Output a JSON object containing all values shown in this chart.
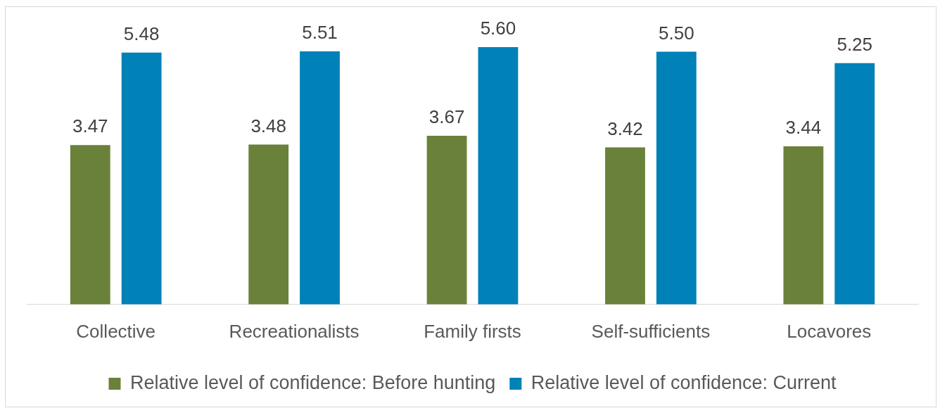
{
  "chart_data": {
    "type": "bar",
    "categories": [
      "Collective",
      "Recreationalists",
      "Family firsts",
      "Self-sufficients",
      "Locavores"
    ],
    "series": [
      {
        "name": "Relative level of confidence: Before hunting",
        "color": "#6a813a",
        "values": [
          3.47,
          3.48,
          3.67,
          3.42,
          3.44
        ],
        "value_labels": [
          "3.47",
          "3.48",
          "3.67",
          "3.42",
          "3.44"
        ]
      },
      {
        "name": "Relative level of confidence: Current",
        "color": "#0081b7",
        "values": [
          5.48,
          5.51,
          5.6,
          5.5,
          5.25
        ],
        "value_labels": [
          "5.48",
          "5.51",
          "5.60",
          "5.50",
          "5.25"
        ]
      }
    ],
    "legend": "bottom",
    "tick_labels": "x"
  }
}
